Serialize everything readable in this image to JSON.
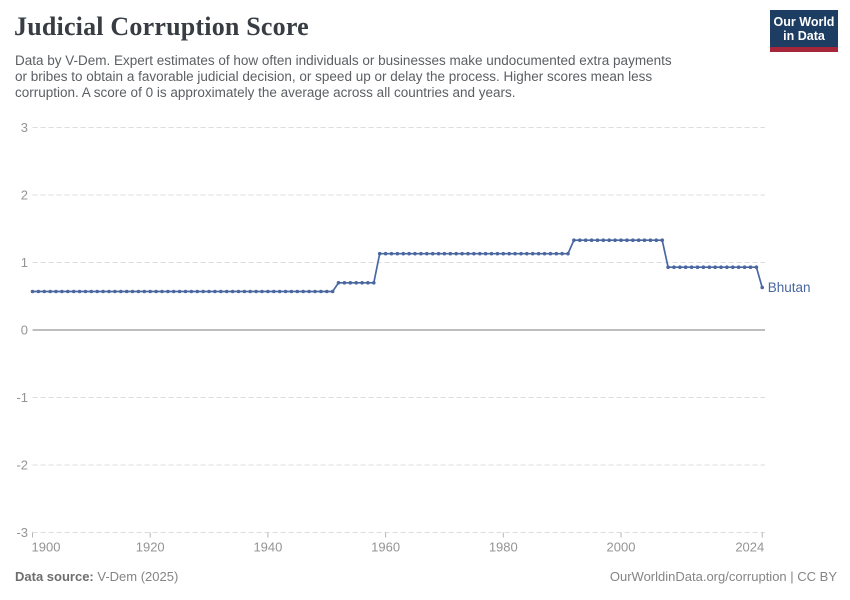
{
  "header": {
    "title": "Judicial Corruption Score",
    "logo": {
      "line1": "Our World",
      "line2": "in Data"
    }
  },
  "subtitle": {
    "lines": [
      "Data by V-Dem. Expert estimates of how often individuals or businesses make undocumented extra payments",
      "or bribes to obtain a favorable judicial decision, or speed up or delay the process. Higher scores mean less",
      "corruption. A score of 0 is approximately the average across all countries and years."
    ]
  },
  "chart_data": {
    "type": "line",
    "title": "Judicial Corruption Score",
    "xlabel": "",
    "ylabel": "",
    "x_axis": {
      "min": 1900,
      "max": 2024,
      "tick_labels": [
        "1900",
        "1920",
        "1940",
        "1960",
        "1980",
        "2000",
        "2024"
      ],
      "tick_years": [
        1900,
        1920,
        1940,
        1960,
        1980,
        2000,
        2024
      ]
    },
    "y_axis": {
      "min": -3,
      "max": 3,
      "tick_labels": [
        "3",
        "2",
        "1",
        "0",
        "-1",
        "-2",
        "-3"
      ],
      "tick_values": [
        3,
        2,
        1,
        0,
        -1,
        -2,
        -3
      ],
      "zero_line_solid": true,
      "grid": "dashed"
    },
    "series": [
      {
        "name": "Bhutan",
        "color": "#4a67a0",
        "segments": [
          {
            "from": 1900,
            "to": 1951,
            "value": 0.57
          },
          {
            "from": 1952,
            "to": 1958,
            "value": 0.7
          },
          {
            "from": 1959,
            "to": 1991,
            "value": 1.13
          },
          {
            "from": 1992,
            "to": 2007,
            "value": 1.33
          },
          {
            "from": 2008,
            "to": 2023,
            "value": 0.93
          },
          {
            "from": 2024,
            "to": 2024,
            "value": 0.63
          }
        ]
      }
    ]
  },
  "footer": {
    "source_label": "Data source:",
    "source_value": "V-Dem (2025)",
    "license": "OurWorldinData.org/corruption | CC BY"
  },
  "colors": {
    "line": "#4a67a0",
    "grid": "#dcdcdc",
    "zero_line": "#a9a9a9",
    "axis_text": "#949494",
    "tick": "#b5b5b5",
    "logo_navy": "#1d3d63",
    "logo_red": "#a42638",
    "title_text": "#373d43",
    "subtitle_text": "#5b5e63",
    "footer_text": "#858585"
  }
}
